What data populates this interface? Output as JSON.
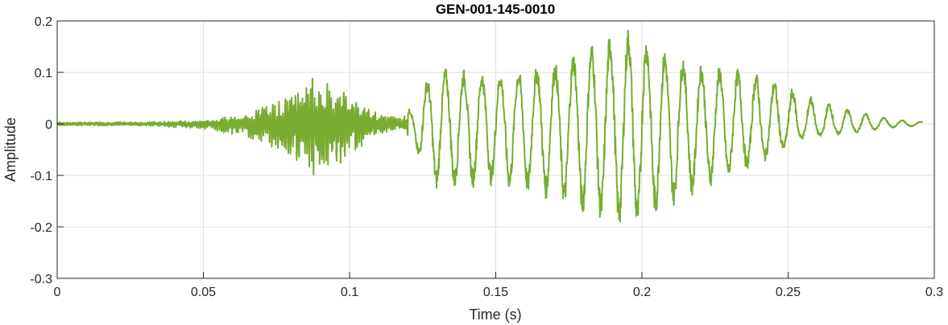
{
  "chart_data": {
    "type": "line",
    "title": "GEN-001-145-0010",
    "xlabel": "Time (s)",
    "ylabel": "Amplitude",
    "xlim": [
      0,
      0.3
    ],
    "ylim": [
      -0.3,
      0.2
    ],
    "grid": true,
    "series_color": "#77ac30",
    "grid_color": "#dfdfdf",
    "axis_color": "#262626",
    "xticks": [
      {
        "value": 0,
        "label": "0"
      },
      {
        "value": 0.05,
        "label": "0.05"
      },
      {
        "value": 0.1,
        "label": "0.1"
      },
      {
        "value": 0.15,
        "label": "0.15"
      },
      {
        "value": 0.2,
        "label": "0.2"
      },
      {
        "value": 0.25,
        "label": "0.25"
      },
      {
        "value": 0.3,
        "label": "0.3"
      }
    ],
    "yticks": [
      {
        "value": -0.3,
        "label": "-0.3"
      },
      {
        "value": -0.2,
        "label": "-0.2"
      },
      {
        "value": -0.1,
        "label": "-0.1"
      },
      {
        "value": 0,
        "label": "0"
      },
      {
        "value": 0.1,
        "label": "0.1"
      },
      {
        "value": 0.2,
        "label": "0.2"
      }
    ],
    "series": [
      {
        "duration": 0.296,
        "envelope": [
          {
            "t": 0.0,
            "pos": 0.004,
            "neg": -0.004
          },
          {
            "t": 0.03,
            "pos": 0.004,
            "neg": -0.004
          },
          {
            "t": 0.05,
            "pos": 0.008,
            "neg": -0.01
          },
          {
            "t": 0.06,
            "pos": 0.015,
            "neg": -0.02
          },
          {
            "t": 0.07,
            "pos": 0.035,
            "neg": -0.04
          },
          {
            "t": 0.08,
            "pos": 0.06,
            "neg": -0.07
          },
          {
            "t": 0.085,
            "pos": 0.09,
            "neg": -0.1
          },
          {
            "t": 0.09,
            "pos": 0.09,
            "neg": -0.1
          },
          {
            "t": 0.095,
            "pos": 0.08,
            "neg": -0.09
          },
          {
            "t": 0.1,
            "pos": 0.06,
            "neg": -0.06
          },
          {
            "t": 0.11,
            "pos": 0.02,
            "neg": -0.02
          },
          {
            "t": 0.118,
            "pos": 0.012,
            "neg": -0.01
          },
          {
            "t": 0.122,
            "pos": 0.04,
            "neg": -0.04
          },
          {
            "t": 0.125,
            "pos": 0.08,
            "neg": -0.09
          },
          {
            "t": 0.13,
            "pos": 0.11,
            "neg": -0.13
          },
          {
            "t": 0.15,
            "pos": 0.1,
            "neg": -0.12
          },
          {
            "t": 0.17,
            "pos": 0.12,
            "neg": -0.15
          },
          {
            "t": 0.18,
            "pos": 0.15,
            "neg": -0.18
          },
          {
            "t": 0.19,
            "pos": 0.18,
            "neg": -0.2
          },
          {
            "t": 0.197,
            "pos": 0.19,
            "neg": -0.21
          },
          {
            "t": 0.205,
            "pos": 0.15,
            "neg": -0.18
          },
          {
            "t": 0.22,
            "pos": 0.12,
            "neg": -0.13
          },
          {
            "t": 0.24,
            "pos": 0.1,
            "neg": -0.08
          },
          {
            "t": 0.255,
            "pos": 0.06,
            "neg": -0.03
          },
          {
            "t": 0.27,
            "pos": 0.03,
            "neg": -0.02
          },
          {
            "t": 0.285,
            "pos": 0.01,
            "neg": -0.008
          },
          {
            "t": 0.296,
            "pos": 0.004,
            "neg": -0.004
          }
        ]
      }
    ]
  }
}
